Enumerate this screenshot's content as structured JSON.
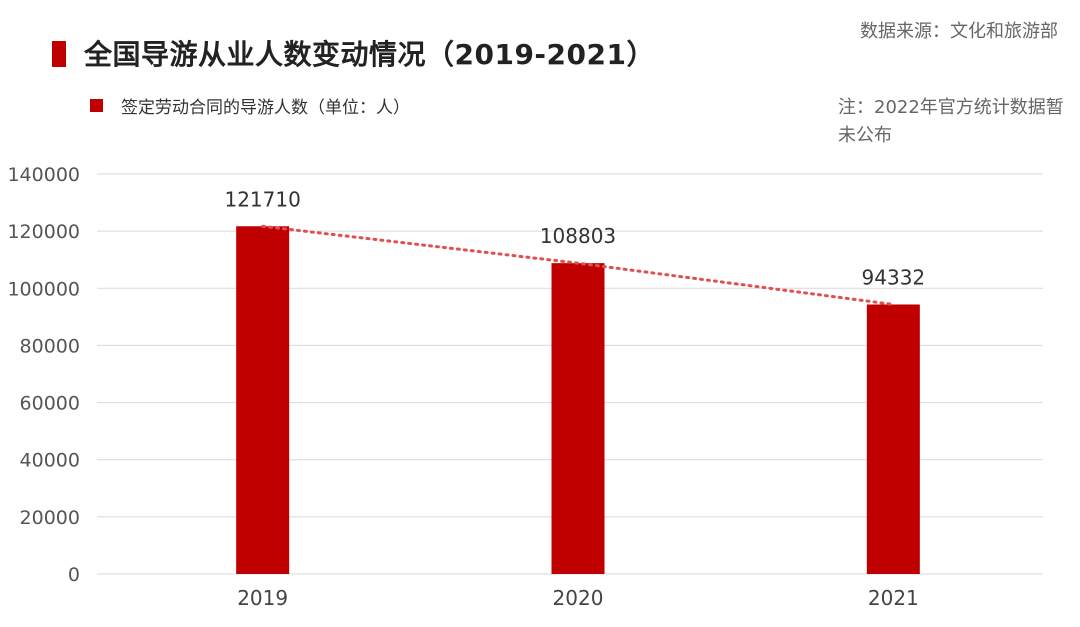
{
  "header": {
    "title": "全国导游从业人数变动情况（2019-2021）",
    "source": "数据来源：文化和旅游部",
    "note": "注：2022年官方统计数据暂未公布"
  },
  "colors": {
    "bar": "#c00000",
    "trendline": "#e05050",
    "grid": "#d9d9d9"
  },
  "chart_data": {
    "type": "bar",
    "categories": [
      "2019",
      "2020",
      "2021"
    ],
    "series": [
      {
        "name": "签定劳动合同的导游人数（单位：人）",
        "values": [
          121710,
          108803,
          94332
        ]
      }
    ],
    "data_labels": [
      "121710",
      "108803",
      "94332"
    ],
    "ylim": [
      0,
      140000
    ],
    "yticks": [
      0,
      20000,
      40000,
      60000,
      80000,
      100000,
      120000,
      140000
    ],
    "ytick_labels": [
      "0",
      "20000",
      "40000",
      "60000",
      "80000",
      "100000",
      "120000",
      "140000"
    ],
    "grid": true,
    "legend_position": "top-left",
    "trendline": {
      "style": "dotted",
      "through": "bar-tops"
    }
  }
}
